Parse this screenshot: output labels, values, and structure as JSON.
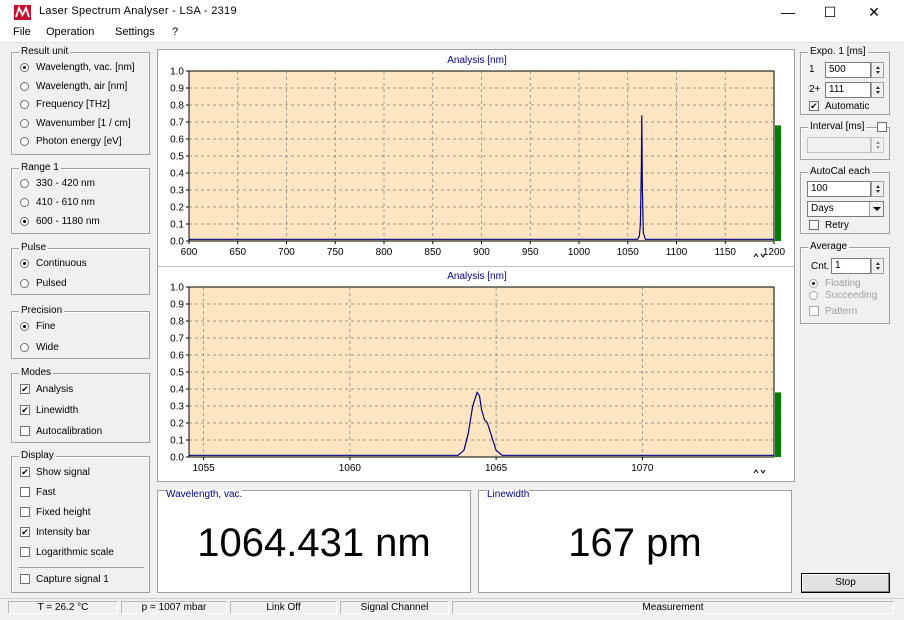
{
  "window": {
    "title": "Laser Spectrum Analyser - LSA - 2319",
    "minimize": "—",
    "maximize": "☐",
    "close": "✕"
  },
  "menu": [
    "File",
    "Operation",
    "Settings",
    "?"
  ],
  "result_unit": {
    "title": "Result unit",
    "options": [
      {
        "label": "Wavelength, vac.  [nm]",
        "selected": true
      },
      {
        "label": "Wavelength, air  [nm]",
        "selected": false
      },
      {
        "label": "Frequency  [THz]",
        "selected": false
      },
      {
        "label": "Wavenumber  [1 / cm]",
        "selected": false
      },
      {
        "label": "Photon energy  [eV]",
        "selected": false
      }
    ]
  },
  "range": {
    "title": "Range 1",
    "options": [
      {
        "label": "330 -  420 nm",
        "selected": false
      },
      {
        "label": "410 -  610 nm",
        "selected": false
      },
      {
        "label": "600 - 1180 nm",
        "selected": true
      }
    ]
  },
  "pulse": {
    "title": "Pulse",
    "options": [
      {
        "label": "Continuous",
        "selected": true
      },
      {
        "label": "Pulsed",
        "selected": false
      }
    ]
  },
  "precision": {
    "title": "Precision",
    "options": [
      {
        "label": "Fine",
        "selected": true
      },
      {
        "label": "Wide",
        "selected": false
      }
    ]
  },
  "modes": {
    "title": "Modes",
    "options": [
      {
        "label": "Analysis",
        "checked": true
      },
      {
        "label": "Linewidth",
        "checked": true
      },
      {
        "label": "Autocalibration",
        "checked": false
      }
    ]
  },
  "display": {
    "title": "Display",
    "options": [
      {
        "label": "Show signal",
        "checked": true
      },
      {
        "label": "Fast",
        "checked": false
      },
      {
        "label": "Fixed height",
        "checked": false
      },
      {
        "label": "Intensity bar",
        "checked": true
      },
      {
        "label": "Logarithmic scale",
        "checked": false
      }
    ],
    "capture": {
      "label": "Capture signal 1",
      "checked": false
    }
  },
  "plots": {
    "top_title": "Analysis  [nm]",
    "bottom_title": "Analysis  [nm]"
  },
  "chart_data": [
    {
      "type": "line",
      "title": "Analysis  [nm]",
      "xlim": [
        600,
        1200
      ],
      "ylim": [
        0,
        1.0
      ],
      "x_ticks": [
        "600",
        "650",
        "700",
        "750",
        "800",
        "850",
        "900",
        "950",
        "1000",
        "1050",
        "1100",
        "1150",
        "1200"
      ],
      "y_ticks": [
        "0.0",
        "0.1",
        "0.2",
        "0.3",
        "0.4",
        "0.5",
        "0.6",
        "0.7",
        "0.8",
        "0.9",
        "1.0"
      ],
      "grid": true,
      "series": [
        {
          "x": [
            600,
            1060,
            1062,
            1063,
            1064,
            1064.4,
            1065,
            1066,
            1068,
            1200
          ],
          "y": [
            0.01,
            0.01,
            0.03,
            0.1,
            0.45,
            0.74,
            0.3,
            0.05,
            0.01,
            0.01
          ]
        }
      ],
      "intensity_bar": 0.68
    },
    {
      "type": "line",
      "title": "Analysis  [nm]",
      "xlim": [
        1054.5,
        1074.5
      ],
      "ylim": [
        0,
        1.0
      ],
      "x_ticks": [
        "1055",
        "1060",
        "1065",
        "1070"
      ],
      "y_ticks": [
        "0.0",
        "0.1",
        "0.2",
        "0.3",
        "0.4",
        "0.5",
        "0.6",
        "0.7",
        "0.8",
        "0.9",
        "1.0"
      ],
      "grid": true,
      "series": [
        {
          "x": [
            1054.5,
            1063.7,
            1063.9,
            1064.05,
            1064.2,
            1064.35,
            1064.43,
            1064.5,
            1064.6,
            1064.7,
            1064.85,
            1065.0,
            1065.2,
            1074.5
          ],
          "y": [
            0.01,
            0.01,
            0.04,
            0.14,
            0.3,
            0.38,
            0.36,
            0.28,
            0.22,
            0.2,
            0.12,
            0.04,
            0.01,
            0.01
          ]
        }
      ],
      "intensity_bar": 0.38
    }
  ],
  "results": {
    "wavelength_label": "Wavelength,  vac.",
    "wavelength_value": "1064.431 nm",
    "linewidth_label": "Linewidth",
    "linewidth_value": "167 pm"
  },
  "expo": {
    "title": "Expo. 1  [ms]",
    "row1_label": "1",
    "row1_value": "500",
    "row2_label": "2+",
    "row2_value": "111",
    "automatic": {
      "label": "Automatic",
      "checked": true
    }
  },
  "interval": {
    "title": "Interval [ms]",
    "checked": false,
    "value": ""
  },
  "autocal": {
    "title": "AutoCal each",
    "value": "100",
    "unit": "Days",
    "retry": {
      "label": "Retry",
      "checked": false
    }
  },
  "average": {
    "title": "Average",
    "cnt_label": "Cnt.",
    "cnt_value": "1",
    "options": [
      {
        "label": "Floating",
        "selected": true
      },
      {
        "label": "Succeeding",
        "selected": false
      },
      {
        "label": "Pattern",
        "checked": false
      }
    ]
  },
  "stop_button": "Stop",
  "status": {
    "temp": "T = 26.2 °C",
    "pressure": "p = 1007 mbar",
    "link": "Link Off",
    "channel": "Signal Channel",
    "measurement": "Measurement"
  }
}
